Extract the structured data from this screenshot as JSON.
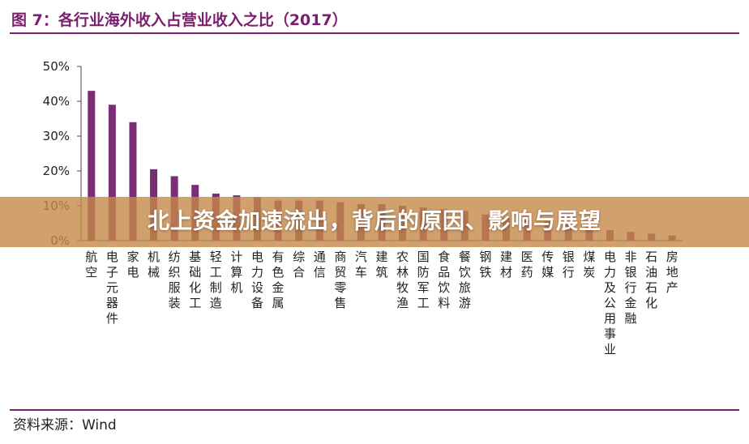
{
  "title": "图 7：各行业海外收入占营业收入之比（2017）",
  "source": "资料来源：Wind",
  "banner": "北上资金加速流出，背后的原因、影响与展望",
  "colors": {
    "bar": "#7a2e76",
    "accent": "#7a1f6e",
    "axis": "#444444"
  },
  "chart_data": {
    "type": "bar",
    "categories": [
      "航空",
      "电子元器件",
      "家电",
      "机械",
      "纺织服装",
      "基础化工",
      "轻工制造",
      "计算机",
      "电力设备",
      "有色金属",
      "综合",
      "通信",
      "商贸零售",
      "汽车",
      "建筑",
      "农林牧渔",
      "国防军工",
      "食品饮料",
      "餐饮旅游",
      "钢铁",
      "建材",
      "医药",
      "传媒",
      "银行",
      "煤炭",
      "电力及公用事业",
      "非银行金融",
      "石油石化",
      "房地产"
    ],
    "values": [
      43.0,
      39.0,
      34.0,
      20.5,
      18.5,
      16.0,
      13.5,
      13.0,
      12.5,
      11.5,
      11.5,
      11.5,
      11.0,
      10.5,
      10.5,
      10.0,
      9.5,
      9.0,
      8.5,
      7.5,
      6.5,
      6.0,
      5.5,
      5.0,
      4.0,
      3.0,
      2.5,
      2.0,
      1.5
    ],
    "ylim": [
      0,
      50
    ],
    "yticks": [
      "0%",
      "10%",
      "20%",
      "30%",
      "40%",
      "50%"
    ],
    "ytick_values": [
      0,
      10,
      20,
      30,
      40,
      50
    ],
    "grid": false
  }
}
